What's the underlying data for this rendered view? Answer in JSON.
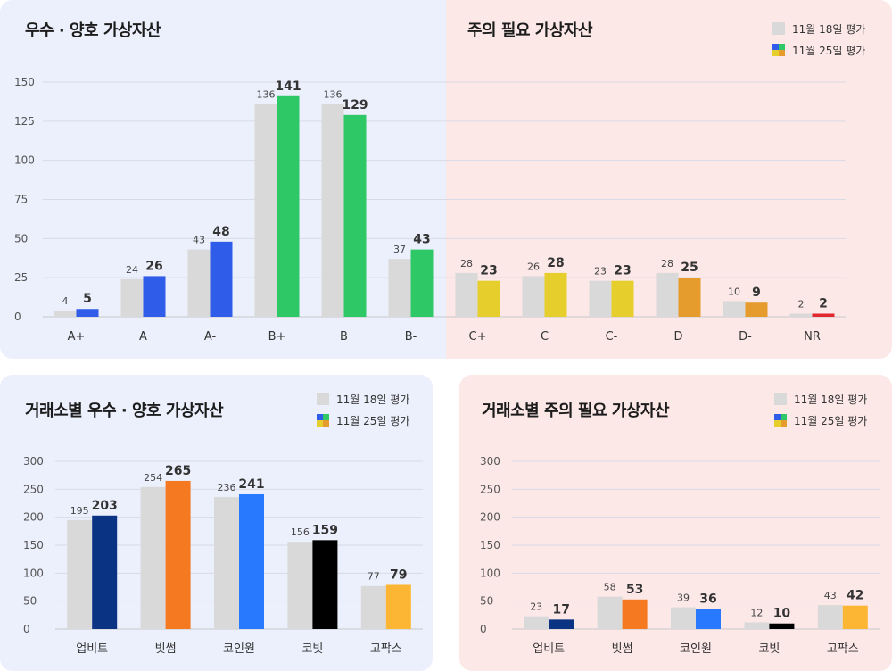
{
  "top": {
    "title_left": "우수 · 양호 가상자산",
    "title_right": "주의 필요 가상자산"
  },
  "legend": {
    "prev": "11월 18일 평가",
    "curr": "11월 25일 평가"
  },
  "bottom_left": {
    "title": "거래소별 우수 · 양호 가상자산"
  },
  "bottom_right": {
    "title": "거래소별 주의 필요 가상자산"
  },
  "colors": {
    "good_bg": "#eceffc",
    "warn_bg": "#fde8e8",
    "prev_bar": "#d9d9d9"
  },
  "chart_data": [
    {
      "type": "bar",
      "title": "",
      "categories": [
        "A+",
        "A",
        "A-",
        "B+",
        "B",
        "B-",
        "C+",
        "C",
        "C-",
        "D",
        "D-",
        "NR"
      ],
      "series": [
        {
          "name": "11월 18일 평가",
          "values": [
            4,
            24,
            43,
            136,
            136,
            37,
            28,
            26,
            23,
            28,
            10,
            2
          ]
        },
        {
          "name": "11월 25일 평가",
          "values": [
            5,
            26,
            48,
            141,
            129,
            43,
            23,
            28,
            23,
            25,
            9,
            2
          ]
        }
      ],
      "current_colors": [
        "#2f5ce8",
        "#2f5ce8",
        "#2f5ce8",
        "#2ec866",
        "#2ec866",
        "#2ec866",
        "#e6cf2c",
        "#e6cf2c",
        "#e6cf2c",
        "#e69c2c",
        "#e69c2c",
        "#e0282e"
      ],
      "yticks": [
        0,
        25,
        50,
        75,
        100,
        125,
        150
      ],
      "ylim": [
        0,
        150
      ],
      "grid": true
    },
    {
      "type": "bar",
      "title": "거래소별 우수 · 양호 가상자산",
      "categories": [
        "업비트",
        "빗썸",
        "코인원",
        "코빗",
        "고팍스"
      ],
      "series": [
        {
          "name": "11월 18일 평가",
          "values": [
            195,
            254,
            236,
            156,
            77
          ]
        },
        {
          "name": "11월 25일 평가",
          "values": [
            203,
            265,
            241,
            159,
            79
          ]
        }
      ],
      "current_colors": [
        "#0b3384",
        "#f47920",
        "#2979ff",
        "#000000",
        "#fdb634"
      ],
      "yticks": [
        0,
        50,
        100,
        150,
        200,
        250,
        300
      ],
      "ylim": [
        0,
        300
      ],
      "grid": true
    },
    {
      "type": "bar",
      "title": "거래소별 주의 필요 가상자산",
      "categories": [
        "업비트",
        "빗썸",
        "코인원",
        "코빗",
        "고팍스"
      ],
      "series": [
        {
          "name": "11월 18일 평가",
          "values": [
            23,
            58,
            39,
            12,
            43
          ]
        },
        {
          "name": "11월 25일 평가",
          "values": [
            17,
            53,
            36,
            10,
            42
          ]
        }
      ],
      "current_colors": [
        "#0b3384",
        "#f47920",
        "#2979ff",
        "#000000",
        "#fdb634"
      ],
      "yticks": [
        0,
        50,
        100,
        150,
        200,
        250,
        300
      ],
      "ylim": [
        0,
        300
      ],
      "grid": true
    }
  ]
}
